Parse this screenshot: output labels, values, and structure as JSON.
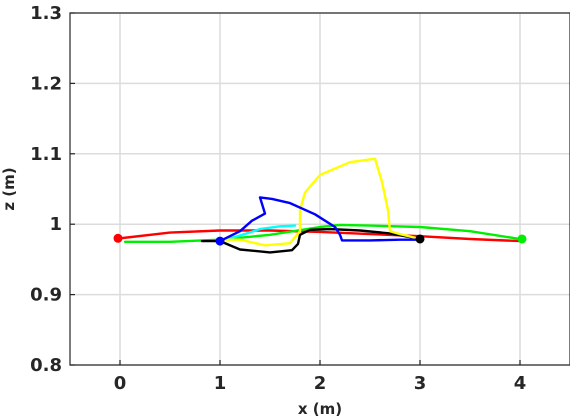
{
  "chart_data": {
    "type": "line",
    "title": "",
    "xlabel": "x (m)",
    "ylabel": "z (m)",
    "xlim": [
      -0.5,
      4.5
    ],
    "ylim": [
      0.8,
      1.3
    ],
    "xticks": [
      0,
      1,
      2,
      3,
      4
    ],
    "yticks": [
      0.8,
      0.9,
      1.0,
      1.1,
      1.2,
      1.3
    ],
    "xtick_labels": [
      "0",
      "1",
      "2",
      "3",
      "4"
    ],
    "ytick_labels": [
      "0.8",
      "0.9",
      "1",
      "1.1",
      "1.2",
      "1.3"
    ],
    "grid": true,
    "legend": "none",
    "series": [
      {
        "color": "#ff0000",
        "x": [
          0.0,
          0.5,
          1.0,
          1.5,
          2.0,
          2.5,
          3.0,
          3.5,
          4.0
        ],
        "y": [
          0.98,
          0.988,
          0.991,
          0.991,
          0.989,
          0.986,
          0.983,
          0.979,
          0.976
        ]
      },
      {
        "color": "#00ee00",
        "x": [
          0.05,
          0.5,
          1.0,
          1.5,
          2.0,
          2.2,
          2.5,
          3.0,
          3.5,
          4.0
        ],
        "y": [
          0.975,
          0.975,
          0.978,
          0.985,
          0.996,
          0.999,
          0.998,
          0.996,
          0.99,
          0.979
        ]
      },
      {
        "color": "#000000",
        "x": [
          0.82,
          1.0,
          1.2,
          1.5,
          1.72,
          1.78,
          1.8,
          1.9,
          2.1,
          2.4,
          2.7,
          3.0
        ],
        "y": [
          0.976,
          0.976,
          0.964,
          0.96,
          0.963,
          0.972,
          0.985,
          0.992,
          0.993,
          0.991,
          0.987,
          0.979
        ]
      },
      {
        "color": "#00ffff",
        "x": [
          1.0,
          1.2,
          1.4,
          1.6,
          1.75
        ],
        "y": [
          0.976,
          0.984,
          0.993,
          0.997,
          0.998
        ]
      },
      {
        "color": "#ffff00",
        "x": [
          1.0,
          1.2,
          1.45,
          1.7,
          1.8,
          1.8,
          1.85,
          2.0,
          2.3,
          2.55,
          2.62,
          2.68,
          2.7,
          2.8,
          3.0
        ],
        "y": [
          0.978,
          0.978,
          0.97,
          0.973,
          0.99,
          1.02,
          1.045,
          1.07,
          1.088,
          1.093,
          1.06,
          1.02,
          0.99,
          0.986,
          0.979
        ]
      },
      {
        "color": "#0000ff",
        "x": [
          1.0,
          1.2,
          1.32,
          1.45,
          1.4,
          1.52,
          1.7,
          1.95,
          2.15,
          2.2,
          2.22,
          2.5,
          2.8,
          3.0
        ],
        "y": [
          0.976,
          0.99,
          1.005,
          1.015,
          1.038,
          1.036,
          1.03,
          1.014,
          0.996,
          0.985,
          0.977,
          0.977,
          0.978,
          0.978
        ]
      }
    ],
    "markers": [
      {
        "color": "#ff0000",
        "x": -0.02,
        "y": 0.98
      },
      {
        "color": "#00ee00",
        "x": 4.02,
        "y": 0.979
      },
      {
        "color": "#0000ff",
        "x": 1.0,
        "y": 0.976
      },
      {
        "color": "#000000",
        "x": 3.0,
        "y": 0.979
      }
    ]
  }
}
